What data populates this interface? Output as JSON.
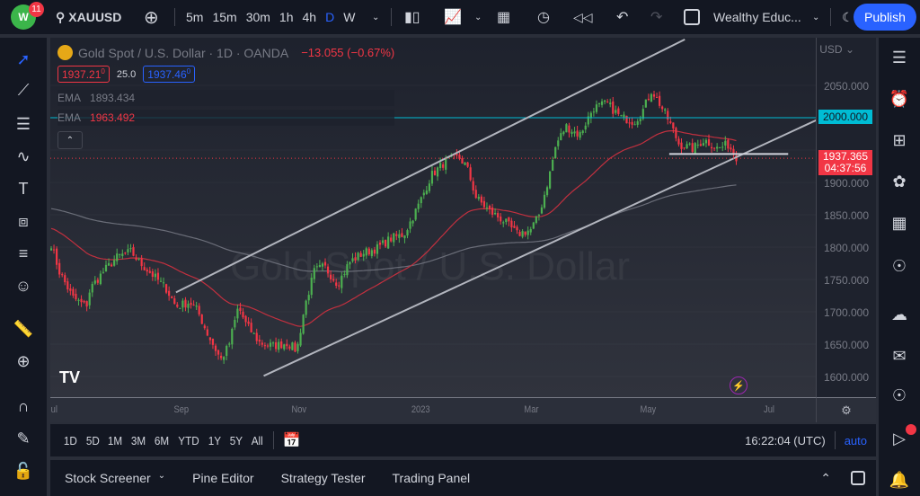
{
  "topbar": {
    "badge": "11",
    "symbol": "XAUUSD",
    "intervals": [
      "5m",
      "15m",
      "30m",
      "1h",
      "4h",
      "D",
      "W"
    ],
    "active_interval": "D",
    "layout_name": "Wealthy Educ...",
    "publish": "Publish"
  },
  "legend": {
    "title": "Gold Spot / U.S. Dollar · 1D · OANDA",
    "change": "−13.055 (−0.67%)",
    "bid": "1937.21",
    "bid_sup": "0",
    "spread": "25.0",
    "ask": "1937.46",
    "ask_sup": "0",
    "ema1_label": "EMA",
    "ema1_value": "1893.434",
    "ema2_label": "EMA",
    "ema2_value": "1963.492"
  },
  "watermark": "Gold Spot / U.S. Dollar",
  "price_axis": {
    "currency": "USD",
    "labels": [
      "2050.000",
      "1900.000",
      "1850.000",
      "1800.000",
      "1750.000",
      "1700.000",
      "1650.000",
      "1600.000"
    ],
    "level_label": "2000.000",
    "current_price": "1937.365",
    "countdown": "04:37:56"
  },
  "time_axis": [
    "ul",
    "Sep",
    "Nov",
    "2023",
    "Mar",
    "May",
    "Jul"
  ],
  "range_bar": {
    "ranges": [
      "1D",
      "5D",
      "1M",
      "3M",
      "6M",
      "YTD",
      "1Y",
      "5Y",
      "All"
    ],
    "clock": "16:22:04 (UTC)",
    "auto": "auto"
  },
  "bottom_panel": {
    "tabs": [
      "Stock Screener",
      "Pine Editor",
      "Strategy Tester",
      "Trading Panel"
    ]
  },
  "colors": {
    "up": "#26a69a",
    "down": "#ef5350",
    "up_candle": "#4caf50",
    "down_candle": "#f23645",
    "ema_fast": "#f23645",
    "ema_slow": "#787b86",
    "level": "#00bcd4",
    "accent": "#2962ff"
  },
  "chart_data": {
    "type": "candlestick",
    "symbol": "XAUUSD",
    "ylim": [
      1580,
      2130
    ],
    "closes": [
      [
        "2022-07-01",
        1805
      ],
      [
        "2022-07-05",
        1763
      ],
      [
        "2022-07-12",
        1722
      ],
      [
        "2022-07-19",
        1708
      ],
      [
        "2022-07-21",
        1736
      ],
      [
        "2022-07-28",
        1763
      ],
      [
        "2022-08-04",
        1785
      ],
      [
        "2022-08-11",
        1793
      ],
      [
        "2022-08-15",
        1777
      ],
      [
        "2022-08-22",
        1757
      ],
      [
        "2022-08-29",
        1736
      ],
      [
        "2022-09-03",
        1708
      ],
      [
        "2022-09-10",
        1715
      ],
      [
        "2022-09-14",
        1702
      ],
      [
        "2022-09-19",
        1667
      ],
      [
        "2022-09-26",
        1626
      ],
      [
        "2022-09-30",
        1647
      ],
      [
        "2022-10-05",
        1708
      ],
      [
        "2022-10-09",
        1680
      ],
      [
        "2022-10-16",
        1652
      ],
      [
        "2022-10-23",
        1647
      ],
      [
        "2022-10-30",
        1652
      ],
      [
        "2022-11-04",
        1640
      ],
      [
        "2022-11-08",
        1708
      ],
      [
        "2022-11-13",
        1763
      ],
      [
        "2022-11-18",
        1770
      ],
      [
        "2022-11-25",
        1743
      ],
      [
        "2022-12-01",
        1777
      ],
      [
        "2022-12-08",
        1791
      ],
      [
        "2022-12-15",
        1798
      ],
      [
        "2022-12-22",
        1813
      ],
      [
        "2022-12-29",
        1820
      ],
      [
        "2023-01-05",
        1862
      ],
      [
        "2023-01-12",
        1911
      ],
      [
        "2023-01-19",
        1932
      ],
      [
        "2023-01-26",
        1939
      ],
      [
        "2023-01-30",
        1925
      ],
      [
        "2023-02-04",
        1876
      ],
      [
        "2023-02-11",
        1855
      ],
      [
        "2023-02-18",
        1841
      ],
      [
        "2023-02-25",
        1820
      ],
      [
        "2023-03-04",
        1827
      ],
      [
        "2023-03-08",
        1848
      ],
      [
        "2023-03-13",
        1904
      ],
      [
        "2023-03-17",
        1959
      ],
      [
        "2023-03-22",
        1987
      ],
      [
        "2023-03-29",
        1973
      ],
      [
        "2023-04-05",
        2015
      ],
      [
        "2023-04-12",
        2022
      ],
      [
        "2023-04-19",
        2001
      ],
      [
        "2023-04-26",
        1994
      ],
      [
        "2023-04-30",
        2008
      ],
      [
        "2023-05-05",
        2043
      ],
      [
        "2023-05-09",
        2022
      ],
      [
        "2023-05-14",
        1994
      ],
      [
        "2023-05-19",
        1959
      ],
      [
        "2023-05-26",
        1952
      ],
      [
        "2023-06-01",
        1966
      ],
      [
        "2023-06-08",
        1952
      ],
      [
        "2023-06-13",
        1959
      ],
      [
        "2023-06-18",
        1937
      ]
    ],
    "drawings": {
      "channel_upper": [
        [
          "2022-09-03",
          1730
        ],
        [
          "2023-05-22",
          2121
        ]
      ],
      "channel_lower": [
        [
          "2022-10-18",
          1601
        ],
        [
          "2023-07-29",
          1997
        ]
      ],
      "support": [
        [
          "2023-05-14",
          1944
        ],
        [
          "2023-07-14",
          1944
        ]
      ],
      "level": 2000
    }
  }
}
